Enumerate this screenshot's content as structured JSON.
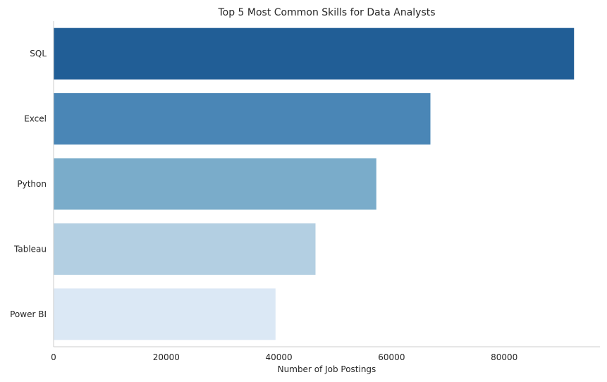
{
  "chart_data": {
    "type": "bar",
    "orientation": "horizontal",
    "title": "Top 5 Most Common Skills for Data Analysts",
    "xlabel": "Number of Job Postings",
    "ylabel": "",
    "categories": [
      "SQL",
      "Excel",
      "Python",
      "Tableau",
      "Power BI"
    ],
    "values": [
      92400,
      66900,
      57300,
      46500,
      39400
    ],
    "colors": [
      "#215e96",
      "#4a86b6",
      "#7aacca",
      "#b3cfe2",
      "#dbe8f5"
    ],
    "xlim": [
      0,
      97000
    ],
    "xticks": [
      0,
      20000,
      40000,
      60000,
      80000
    ],
    "xtick_labels": [
      "0",
      "20000",
      "40000",
      "60000",
      "80000"
    ],
    "grid": false,
    "legend": "none"
  }
}
